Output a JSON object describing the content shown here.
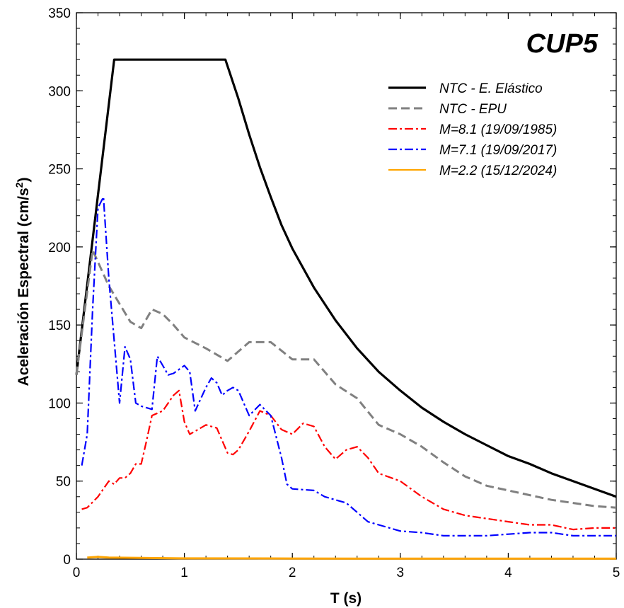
{
  "chart_data": {
    "type": "line",
    "title": "CUP5",
    "xlabel": "T (s)",
    "ylabel": "Aceleración Espectral (cm/s",
    "ylabel_sup": "2",
    "ylabel_close": ")",
    "xlim": [
      0,
      5
    ],
    "ylim": [
      0,
      350
    ],
    "xticks": [
      0,
      1,
      2,
      3,
      4,
      5
    ],
    "yticks": [
      0,
      50,
      100,
      150,
      200,
      250,
      300,
      350
    ],
    "grid": false,
    "legend_position": "top-right",
    "series": [
      {
        "name": "NTC - E. Elástico",
        "color": "#000000",
        "style": "solid",
        "x": [
          0,
          0.35,
          1.38,
          1.5,
          1.6,
          1.7,
          1.8,
          1.9,
          2.0,
          2.2,
          2.4,
          2.6,
          2.8,
          3.0,
          3.2,
          3.4,
          3.6,
          3.8,
          4.0,
          4.2,
          4.4,
          4.6,
          4.8,
          5.0
        ],
        "y": [
          118,
          320,
          320,
          295,
          272,
          251,
          232,
          214,
          199,
          174,
          153,
          135,
          120,
          108,
          97,
          88,
          80,
          73,
          66,
          61,
          55,
          50,
          45,
          40
        ]
      },
      {
        "name": "NTC - EPU",
        "color": "#808080",
        "style": "dashed",
        "x": [
          0,
          0.15,
          0.3,
          0.5,
          0.6,
          0.7,
          0.8,
          0.9,
          1.0,
          1.2,
          1.4,
          1.6,
          1.8,
          2.0,
          2.2,
          2.4,
          2.6,
          2.8,
          3.0,
          3.2,
          3.4,
          3.6,
          3.8,
          4.0,
          4.2,
          4.4,
          4.6,
          4.8,
          5.0
        ],
        "y": [
          118,
          198,
          175,
          152,
          148,
          160,
          157,
          150,
          142,
          135,
          127,
          139,
          139,
          128,
          128,
          112,
          103,
          86,
          80,
          72,
          62,
          53,
          47,
          44,
          41,
          38,
          36,
          34,
          33
        ]
      },
      {
        "name": "M=8.1 (19/09/1985)",
        "color": "#ff0000",
        "style": "dashdot",
        "x": [
          0.05,
          0.1,
          0.2,
          0.3,
          0.35,
          0.4,
          0.45,
          0.5,
          0.55,
          0.6,
          0.65,
          0.7,
          0.8,
          0.9,
          0.95,
          1.0,
          1.05,
          1.1,
          1.2,
          1.3,
          1.4,
          1.45,
          1.5,
          1.6,
          1.7,
          1.8,
          1.9,
          2.0,
          2.1,
          2.2,
          2.3,
          2.4,
          2.5,
          2.6,
          2.7,
          2.8,
          3.0,
          3.2,
          3.4,
          3.6,
          3.8,
          4.0,
          4.2,
          4.4,
          4.6,
          4.8,
          5.0
        ],
        "y": [
          32,
          33,
          40,
          50,
          48,
          52,
          52,
          55,
          61,
          61,
          76,
          92,
          95,
          105,
          108,
          88,
          80,
          82,
          86,
          84,
          68,
          67,
          70,
          82,
          95,
          92,
          83,
          80,
          87,
          85,
          72,
          64,
          70,
          72,
          65,
          55,
          50,
          40,
          32,
          28,
          26,
          24,
          22,
          22,
          19,
          20,
          20
        ]
      },
      {
        "name": "M=7.1 (19/09/2017)",
        "color": "#0000ff",
        "style": "dashdot",
        "x": [
          0.05,
          0.1,
          0.15,
          0.2,
          0.25,
          0.3,
          0.35,
          0.4,
          0.45,
          0.5,
          0.55,
          0.6,
          0.7,
          0.75,
          0.8,
          0.85,
          0.9,
          1.0,
          1.05,
          1.1,
          1.2,
          1.25,
          1.3,
          1.35,
          1.4,
          1.45,
          1.5,
          1.55,
          1.6,
          1.7,
          1.8,
          1.9,
          1.95,
          2.0,
          2.2,
          2.3,
          2.5,
          2.6,
          2.7,
          2.8,
          3.0,
          3.2,
          3.4,
          3.6,
          3.8,
          4.0,
          4.2,
          4.4,
          4.6,
          4.8,
          5.0
        ],
        "y": [
          60,
          80,
          160,
          225,
          232,
          180,
          140,
          100,
          136,
          128,
          100,
          98,
          96,
          130,
          124,
          118,
          119,
          124,
          120,
          95,
          110,
          116,
          113,
          105,
          108,
          110,
          108,
          100,
          92,
          99,
          92,
          65,
          48,
          45,
          44,
          40,
          36,
          30,
          24,
          22,
          18,
          17,
          15,
          15,
          15,
          16,
          17,
          17,
          15,
          15,
          15
        ]
      },
      {
        "name": "M=2.2 (15/12/2024)",
        "color": "#ffa500",
        "style": "solid",
        "x": [
          0.1,
          0.2,
          0.3,
          1.0,
          2.0,
          3.0,
          4.0,
          5.0
        ],
        "y": [
          1,
          1.5,
          1,
          0.5,
          0.4,
          0.3,
          0.3,
          0.3
        ]
      }
    ]
  }
}
